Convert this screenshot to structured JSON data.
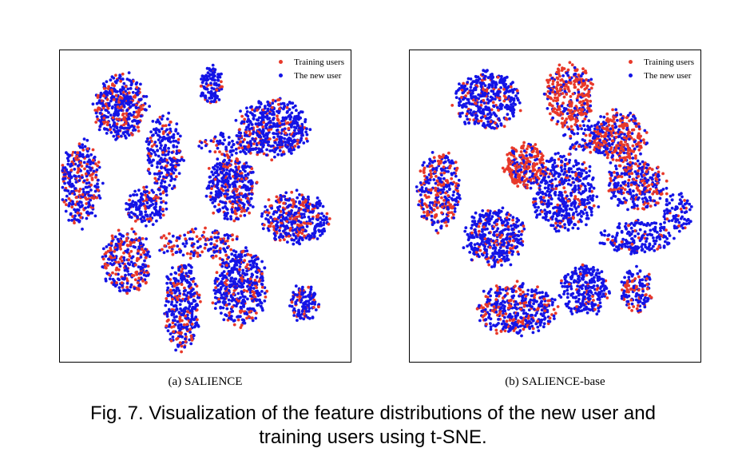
{
  "figure_caption": {
    "line1": "Fig. 7. Visualization of the feature distributions of the new user and",
    "line2": "training users using t-SNE."
  },
  "colors": {
    "training": "#e8392a",
    "new_user": "#1414e6"
  },
  "chart_data": [
    {
      "type": "scatter",
      "caption": "(a) SALIENCE",
      "legend": {
        "placement": "top-right",
        "entries": [
          "Training users",
          "The new user"
        ]
      },
      "grid": false,
      "series": [
        {
          "name": "Training users",
          "color": "#e8392a"
        },
        {
          "name": "The new user",
          "color": "#1414e6"
        }
      ],
      "clusters": [
        {
          "cx": 0.21,
          "cy": 0.18,
          "rx": 0.09,
          "ry": 0.1,
          "n": 420,
          "red": 0.35
        },
        {
          "cx": 0.52,
          "cy": 0.11,
          "rx": 0.04,
          "ry": 0.06,
          "n": 120,
          "red": 0.08
        },
        {
          "cx": 0.73,
          "cy": 0.25,
          "rx": 0.12,
          "ry": 0.09,
          "n": 480,
          "red": 0.2
        },
        {
          "cx": 0.07,
          "cy": 0.43,
          "rx": 0.07,
          "ry": 0.13,
          "n": 320,
          "red": 0.3
        },
        {
          "cx": 0.36,
          "cy": 0.33,
          "rx": 0.06,
          "ry": 0.12,
          "n": 240,
          "red": 0.2
        },
        {
          "cx": 0.3,
          "cy": 0.5,
          "rx": 0.07,
          "ry": 0.06,
          "n": 160,
          "red": 0.18
        },
        {
          "cx": 0.59,
          "cy": 0.44,
          "rx": 0.08,
          "ry": 0.1,
          "n": 380,
          "red": 0.25
        },
        {
          "cx": 0.81,
          "cy": 0.54,
          "rx": 0.11,
          "ry": 0.08,
          "n": 400,
          "red": 0.28
        },
        {
          "cx": 0.23,
          "cy": 0.68,
          "rx": 0.08,
          "ry": 0.1,
          "n": 300,
          "red": 0.4
        },
        {
          "cx": 0.42,
          "cy": 0.82,
          "rx": 0.06,
          "ry": 0.14,
          "n": 340,
          "red": 0.2
        },
        {
          "cx": 0.62,
          "cy": 0.76,
          "rx": 0.09,
          "ry": 0.12,
          "n": 440,
          "red": 0.22
        },
        {
          "cx": 0.84,
          "cy": 0.81,
          "rx": 0.05,
          "ry": 0.06,
          "n": 130,
          "red": 0.2
        },
        {
          "cx": 0.48,
          "cy": 0.62,
          "rx": 0.14,
          "ry": 0.05,
          "n": 150,
          "red": 0.4
        },
        {
          "cx": 0.58,
          "cy": 0.3,
          "rx": 0.1,
          "ry": 0.04,
          "n": 90,
          "red": 0.3
        }
      ]
    },
    {
      "type": "scatter",
      "caption": "(b) SALIENCE-base",
      "legend": {
        "placement": "top-right",
        "entries": [
          "Training users",
          "The new user"
        ]
      },
      "grid": false,
      "series": [
        {
          "name": "Training users",
          "color": "#e8392a"
        },
        {
          "name": "The new user",
          "color": "#1414e6"
        }
      ],
      "clusters": [
        {
          "cx": 0.27,
          "cy": 0.16,
          "rx": 0.11,
          "ry": 0.09,
          "n": 420,
          "red": 0.18
        },
        {
          "cx": 0.55,
          "cy": 0.15,
          "rx": 0.08,
          "ry": 0.1,
          "n": 330,
          "red": 0.75
        },
        {
          "cx": 0.72,
          "cy": 0.28,
          "rx": 0.09,
          "ry": 0.08,
          "n": 300,
          "red": 0.6
        },
        {
          "cx": 0.4,
          "cy": 0.37,
          "rx": 0.07,
          "ry": 0.07,
          "n": 260,
          "red": 0.7
        },
        {
          "cx": 0.1,
          "cy": 0.45,
          "rx": 0.07,
          "ry": 0.12,
          "n": 320,
          "red": 0.45
        },
        {
          "cx": 0.53,
          "cy": 0.46,
          "rx": 0.11,
          "ry": 0.12,
          "n": 450,
          "red": 0.15
        },
        {
          "cx": 0.78,
          "cy": 0.43,
          "rx": 0.1,
          "ry": 0.08,
          "n": 300,
          "red": 0.4
        },
        {
          "cx": 0.29,
          "cy": 0.6,
          "rx": 0.1,
          "ry": 0.09,
          "n": 380,
          "red": 0.22
        },
        {
          "cx": 0.78,
          "cy": 0.6,
          "rx": 0.12,
          "ry": 0.05,
          "n": 200,
          "red": 0.1
        },
        {
          "cx": 0.37,
          "cy": 0.83,
          "rx": 0.13,
          "ry": 0.08,
          "n": 420,
          "red": 0.35
        },
        {
          "cx": 0.6,
          "cy": 0.77,
          "rx": 0.08,
          "ry": 0.08,
          "n": 260,
          "red": 0.12
        },
        {
          "cx": 0.78,
          "cy": 0.77,
          "rx": 0.05,
          "ry": 0.07,
          "n": 140,
          "red": 0.35
        },
        {
          "cx": 0.62,
          "cy": 0.28,
          "rx": 0.08,
          "ry": 0.05,
          "n": 100,
          "red": 0.2
        },
        {
          "cx": 0.92,
          "cy": 0.52,
          "rx": 0.05,
          "ry": 0.06,
          "n": 80,
          "red": 0.1
        }
      ]
    }
  ]
}
